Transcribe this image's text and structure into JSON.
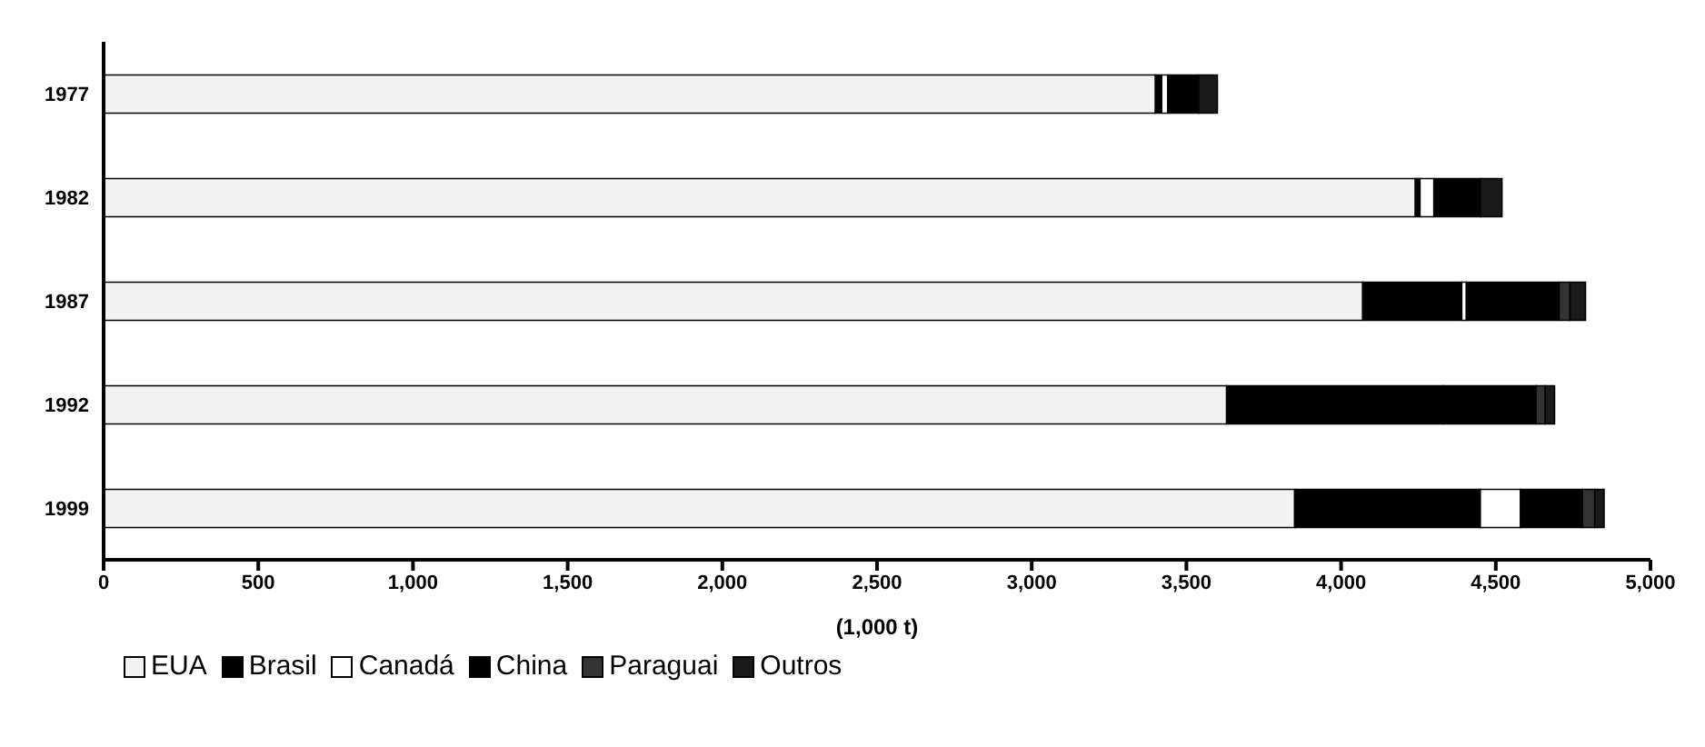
{
  "chart_data": {
    "type": "bar",
    "orientation": "horizontal",
    "stacked": true,
    "xlabel": "(1,000 t)",
    "categories": [
      "1977",
      "1982",
      "1987",
      "1992",
      "1999"
    ],
    "series": [
      {
        "name": "EUA",
        "color": "#f2f2f2",
        "values": [
          3400,
          4240,
          4070,
          3630,
          3850
        ]
      },
      {
        "name": "Brasil",
        "color": "#000000",
        "values": [
          20,
          15,
          320,
          700,
          600
        ]
      },
      {
        "name": "Canadá",
        "color": "#ffffff",
        "values": [
          20,
          45,
          15,
          0,
          130
        ]
      },
      {
        "name": "China",
        "color": "#000000",
        "values": [
          100,
          150,
          300,
          300,
          200
        ]
      },
      {
        "name": "Paraguai",
        "color": "#333333",
        "values": [
          0,
          0,
          35,
          30,
          40
        ]
      },
      {
        "name": "Outros",
        "color": "#1a1a1a",
        "values": [
          60,
          70,
          50,
          30,
          30
        ]
      }
    ],
    "xlim": [
      0,
      5000
    ],
    "xticks": [
      {
        "value": 0,
        "label": "0"
      },
      {
        "value": 500,
        "label": "500"
      },
      {
        "value": 1000,
        "label": "1,000"
      },
      {
        "value": 1500,
        "label": "1,500"
      },
      {
        "value": 2000,
        "label": "2,000"
      },
      {
        "value": 2500,
        "label": "2,500"
      },
      {
        "value": 3000,
        "label": "3,000"
      },
      {
        "value": 3500,
        "label": "3,500"
      },
      {
        "value": 4000,
        "label": "4,000"
      },
      {
        "value": 4500,
        "label": "4,500"
      },
      {
        "value": 5000,
        "label": "5,000"
      }
    ],
    "grid": false,
    "legend": "bottom"
  }
}
